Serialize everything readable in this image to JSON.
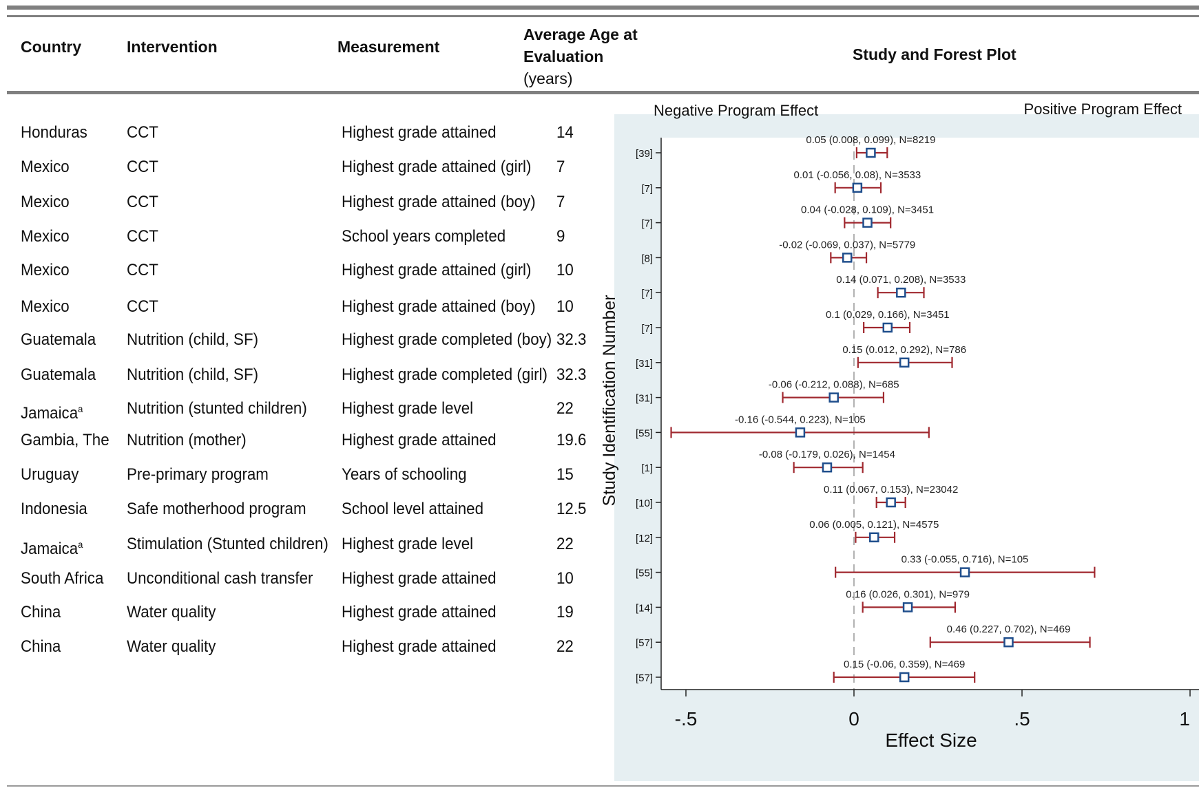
{
  "table": {
    "headers": {
      "country": "Country",
      "intervention": "Intervention",
      "measurement": "Measurement",
      "age_line1": "Average Age at",
      "age_line2": "Evaluation",
      "age_unit": "(years)",
      "plot": "Study and Forest Plot"
    },
    "rows": [
      {
        "country": "Honduras",
        "sup": "",
        "intervention": "CCT",
        "measurement": "Highest grade attained",
        "age": "14"
      },
      {
        "country": "Mexico",
        "sup": "",
        "intervention": "CCT",
        "measurement": "Highest grade attained (girl)",
        "age": "7"
      },
      {
        "country": "Mexico",
        "sup": "",
        "intervention": "CCT",
        "measurement": "Highest grade attained (boy)",
        "age": "7"
      },
      {
        "country": "Mexico",
        "sup": "",
        "intervention": "CCT",
        "measurement": "School years completed",
        "age": "9"
      },
      {
        "country": "Mexico",
        "sup": "",
        "intervention": "CCT",
        "measurement": "Highest grade attained (girl)",
        "age": "10"
      },
      {
        "country": "Mexico",
        "sup": "",
        "intervention": "CCT",
        "measurement": "Highest grade attained (boy)",
        "age": "10"
      },
      {
        "country": "Guatemala",
        "sup": "",
        "intervention": "Nutrition (child, SF)",
        "measurement": "Highest grade completed (boy)",
        "age": "32.3"
      },
      {
        "country": "Guatemala",
        "sup": "",
        "intervention": "Nutrition (child, SF)",
        "measurement": "Highest grade completed (girl)",
        "age": "32.3"
      },
      {
        "country": "Jamaica",
        "sup": "a",
        "intervention": "Nutrition (stunted children)",
        "measurement": "Highest grade level",
        "age": "22"
      },
      {
        "country": "Gambia, The",
        "sup": "",
        "intervention": "Nutrition (mother)",
        "measurement": "Highest grade attained",
        "age": "19.6"
      },
      {
        "country": "Uruguay",
        "sup": "",
        "intervention": "Pre-primary program",
        "measurement": "Years of schooling",
        "age": "15"
      },
      {
        "country": "Indonesia",
        "sup": "",
        "intervention": "Safe motherhood program",
        "measurement": "School level attained",
        "age": "12.5"
      },
      {
        "country": "Jamaica",
        "sup": "a",
        "intervention": "Stimulation (Stunted children)",
        "measurement": "Highest grade level",
        "age": "22"
      },
      {
        "country": "South Africa",
        "sup": "",
        "intervention": "Unconditional cash transfer",
        "measurement": "Highest grade attained",
        "age": "10"
      },
      {
        "country": "China",
        "sup": "",
        "intervention": "Water quality",
        "measurement": "Highest grade attained",
        "age": "19"
      },
      {
        "country": "China",
        "sup": "",
        "intervention": "Water quality",
        "measurement": "Highest grade attained",
        "age": "22"
      }
    ]
  },
  "chart_data": {
    "type": "forest",
    "xlabel": "Effect Size",
    "ylabel": "Study Identification Number",
    "left_note": "Negative Program Effect",
    "right_note": "Positive Program Effect",
    "xlim": [
      -0.55,
      1
    ],
    "xticks": [
      {
        "value": -0.5,
        "label": "-.5"
      },
      {
        "value": 0,
        "label": "0"
      },
      {
        "value": 0.5,
        "label": ".5"
      },
      {
        "value": 1,
        "label": "1"
      }
    ],
    "reference_line": 0,
    "colors": {
      "ci": "#a0282f",
      "marker": "#1f4e8c",
      "panel": "#e6eff2",
      "ref": "#999999"
    },
    "studies": [
      {
        "id": "[39]",
        "est": 0.05,
        "lo": 0.008,
        "hi": 0.099,
        "label": "0.05  (0.008, 0.099),  N=8219"
      },
      {
        "id": "[7]",
        "est": 0.01,
        "lo": -0.056,
        "hi": 0.08,
        "label": "0.01  (-0.056, 0.08),  N=3533"
      },
      {
        "id": "[7]",
        "est": 0.04,
        "lo": -0.028,
        "hi": 0.109,
        "label": "0.04  (-0.028, 0.109),  N=3451"
      },
      {
        "id": "[8]",
        "est": -0.02,
        "lo": -0.069,
        "hi": 0.037,
        "label": "-0.02  (-0.069, 0.037),  N=5779"
      },
      {
        "id": "[7]",
        "est": 0.14,
        "lo": 0.071,
        "hi": 0.208,
        "label": "0.14  (0.071, 0.208),  N=3533"
      },
      {
        "id": "[7]",
        "est": 0.1,
        "lo": 0.029,
        "hi": 0.166,
        "label": "0.1  (0.029, 0.166),  N=3451"
      },
      {
        "id": "[31]",
        "est": 0.15,
        "lo": 0.012,
        "hi": 0.292,
        "label": "0.15  (0.012, 0.292),  N=786"
      },
      {
        "id": "[31]",
        "est": -0.06,
        "lo": -0.212,
        "hi": 0.088,
        "label": "-0.06  (-0.212, 0.088),  N=685"
      },
      {
        "id": "[55]",
        "est": -0.16,
        "lo": -0.544,
        "hi": 0.223,
        "label": "-0.16  (-0.544, 0.223),  N=105"
      },
      {
        "id": "[1]",
        "est": -0.08,
        "lo": -0.179,
        "hi": 0.026,
        "label": "-0.08  (-0.179, 0.026),  N=1454"
      },
      {
        "id": "[10]",
        "est": 0.11,
        "lo": 0.067,
        "hi": 0.153,
        "label": "0.11  (0.067, 0.153),  N=23042"
      },
      {
        "id": "[12]",
        "est": 0.06,
        "lo": 0.005,
        "hi": 0.121,
        "label": "0.06  (0.005, 0.121),  N=4575"
      },
      {
        "id": "[55]",
        "est": 0.33,
        "lo": -0.055,
        "hi": 0.716,
        "label": "0.33  (-0.055, 0.716),  N=105"
      },
      {
        "id": "[14]",
        "est": 0.16,
        "lo": 0.026,
        "hi": 0.301,
        "label": "0.16  (0.026, 0.301),  N=979"
      },
      {
        "id": "[57]",
        "est": 0.46,
        "lo": 0.227,
        "hi": 0.702,
        "label": "0.46  (0.227, 0.702),  N=469"
      },
      {
        "id": "[57]",
        "est": 0.15,
        "lo": -0.06,
        "hi": 0.359,
        "label": "0.15  (-0.06, 0.359),  N=469"
      }
    ]
  }
}
